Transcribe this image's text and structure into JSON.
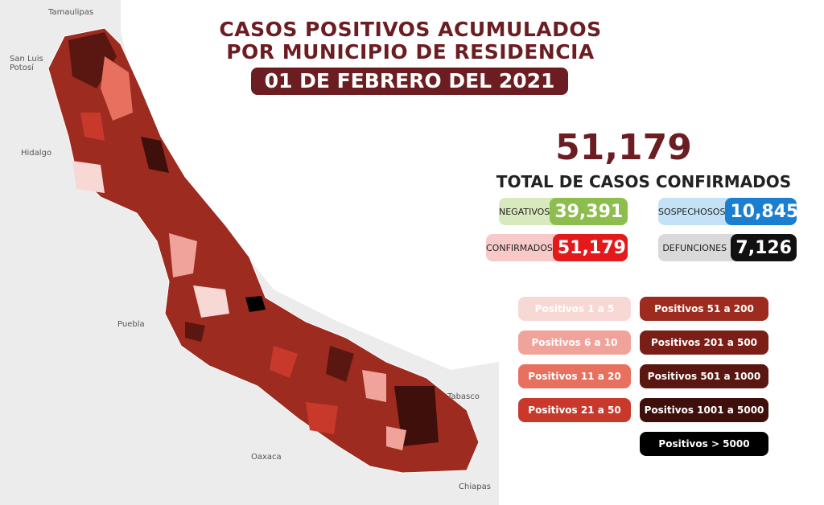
{
  "header": {
    "title_line1": "CASOS POSITIVOS ACUMULADOS",
    "title_line2": "POR MUNICIPIO DE RESIDENCIA",
    "date": "01 DE FEBRERO DEL 2021"
  },
  "total": {
    "value": "51,179",
    "label": "TOTAL DE CASOS CONFIRMADOS"
  },
  "stats": [
    {
      "label": "NEGATIVOS",
      "value": "39,391",
      "light": "#d7e9bd",
      "color": "#8dbd4c"
    },
    {
      "label": "SOSPECHOSOS",
      "value": "10,845",
      "light": "#c3e2f6",
      "color": "#1b7fd1"
    },
    {
      "label": "CONFIRMADOS",
      "value": "51,179",
      "light": "#f8c9c9",
      "color": "#e3191c"
    },
    {
      "label": "DEFUNCIONES",
      "value": "7,126",
      "light": "#d9d9d9",
      "color": "#111111"
    }
  ],
  "legend": [
    {
      "label": "Positivos 1 a 5",
      "color": "#f8d8d5"
    },
    {
      "label": "Positivos 6 a 10",
      "color": "#f0a39b"
    },
    {
      "label": "Positivos 11 a 20",
      "color": "#e7705f"
    },
    {
      "label": "Positivos 21 a 50",
      "color": "#c9392b"
    },
    {
      "label": "Positivos 51 a 200",
      "color": "#9d2b1f"
    },
    {
      "label": "Positivos 201 a 500",
      "color": "#7b1f16"
    },
    {
      "label": "Positivos 501 a 1000",
      "color": "#5a1711"
    },
    {
      "label": "Positivos 1001 a 5000",
      "color": "#3e0f0b"
    },
    {
      "label": "Positivos > 5000",
      "color": "#000000"
    }
  ],
  "map_labels": [
    "Tamaulipas",
    "San Luis Potosí",
    "Hidalgo",
    "Puebla",
    "Oaxaca",
    "Tabasco",
    "Chiapas"
  ]
}
